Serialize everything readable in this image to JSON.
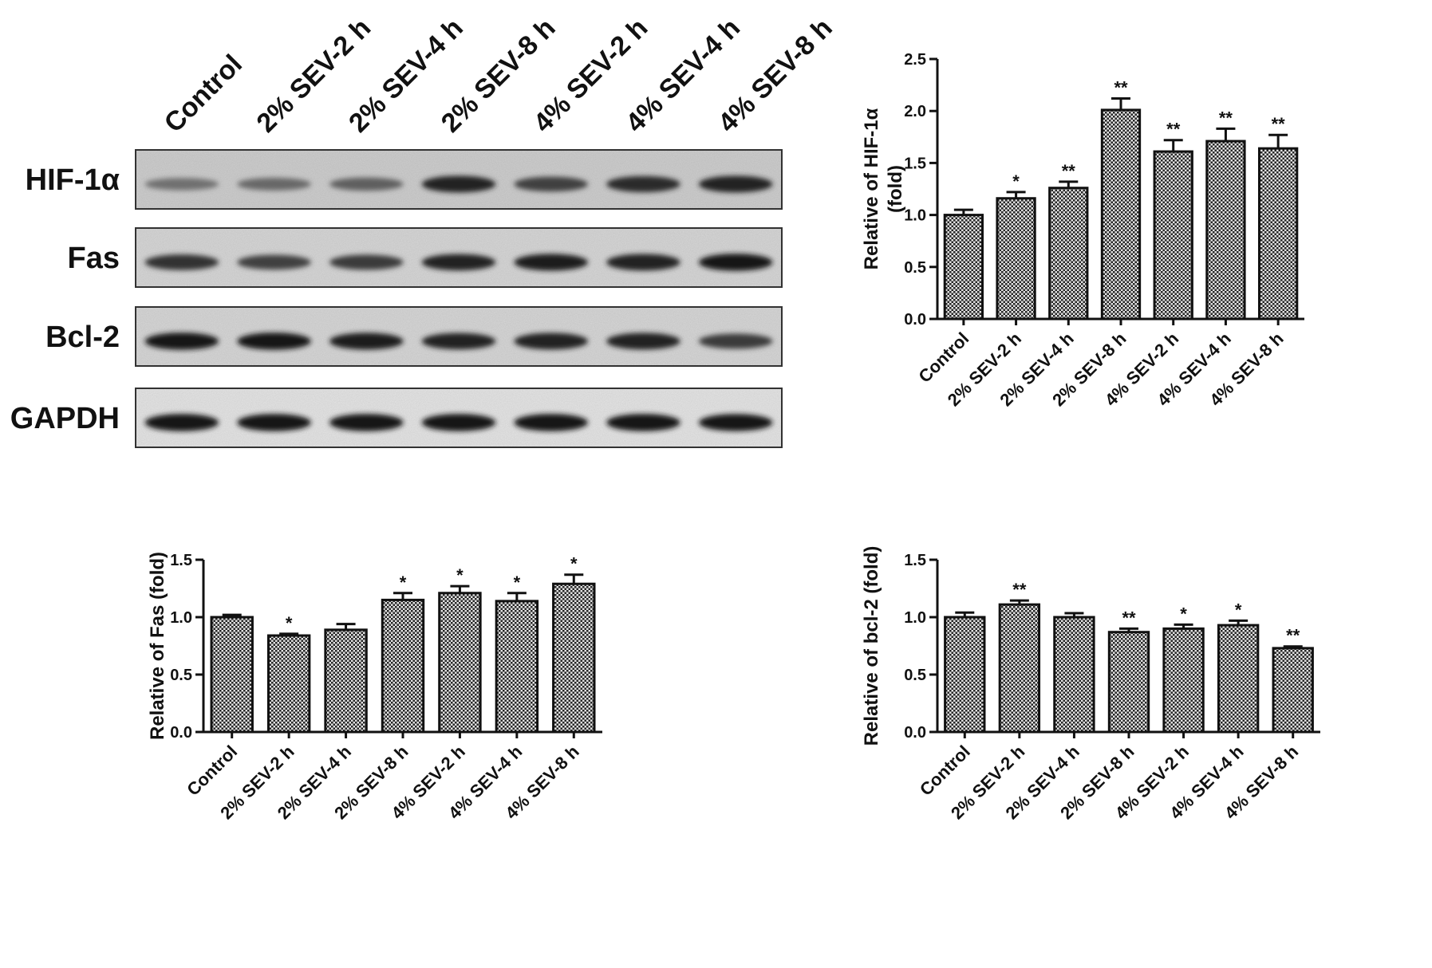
{
  "blot": {
    "lanes": [
      "Control",
      "2% SEV-2 h",
      "2% SEV-4 h",
      "2% SEV-8 h",
      "4% SEV-2 h",
      "4% SEV-4 h",
      "4% SEV-8 h"
    ],
    "rows": [
      {
        "label": "HIF-1α",
        "intensity": [
          0.45,
          0.5,
          0.55,
          0.9,
          0.72,
          0.85,
          0.9
        ]
      },
      {
        "label": "Fas",
        "intensity": [
          0.8,
          0.72,
          0.75,
          0.88,
          0.92,
          0.9,
          0.95
        ]
      },
      {
        "label": "Bcl-2",
        "intensity": [
          0.95,
          0.95,
          0.92,
          0.88,
          0.9,
          0.9,
          0.75
        ]
      },
      {
        "label": "GAPDH",
        "intensity": [
          0.97,
          0.97,
          0.97,
          0.97,
          0.97,
          0.97,
          0.95
        ]
      }
    ]
  },
  "chart_data": [
    {
      "type": "bar",
      "title": "",
      "ylabel": [
        "Relative of HIF-1α",
        "(fold)"
      ],
      "categories": [
        "Control",
        "2% SEV-2 h",
        "2% SEV-4 h",
        "2% SEV-8 h",
        "4% SEV-2 h",
        "4% SEV-4 h",
        "4% SEV-8 h"
      ],
      "values": [
        1.0,
        1.16,
        1.26,
        2.01,
        1.61,
        1.71,
        1.64
      ],
      "errors": [
        0.05,
        0.06,
        0.06,
        0.11,
        0.11,
        0.12,
        0.13
      ],
      "significance": [
        "",
        "*",
        "**",
        "**",
        "**",
        "**",
        "**"
      ],
      "ylim": [
        0,
        2.5
      ],
      "yticks": [
        "0.0",
        "0.5",
        "1.0",
        "1.5",
        "2.0",
        "2.5"
      ],
      "grid": false
    },
    {
      "type": "bar",
      "title": "",
      "ylabel": [
        "Relative of Fas (fold)"
      ],
      "categories": [
        "Control",
        "2% SEV-2 h",
        "2% SEV-4 h",
        "2% SEV-8 h",
        "4% SEV-2 h",
        "4% SEV-4 h",
        "4% SEV-8 h"
      ],
      "values": [
        1.0,
        0.84,
        0.89,
        1.15,
        1.21,
        1.14,
        1.29
      ],
      "errors": [
        0.02,
        0.015,
        0.05,
        0.06,
        0.06,
        0.07,
        0.08
      ],
      "significance": [
        "",
        "*",
        "",
        "*",
        "*",
        "*",
        "*"
      ],
      "ylim": [
        0,
        1.5
      ],
      "yticks": [
        "0.0",
        "0.5",
        "1.0",
        "1.5"
      ],
      "grid": false
    },
    {
      "type": "bar",
      "title": "",
      "ylabel": [
        "Relative of bcl-2 (fold)"
      ],
      "categories": [
        "Control",
        "2% SEV-2 h",
        "2% SEV-4 h",
        "2% SEV-8 h",
        "4% SEV-2 h",
        "4% SEV-4 h",
        "4% SEV-8 h"
      ],
      "values": [
        1.0,
        1.11,
        1.0,
        0.87,
        0.9,
        0.93,
        0.73
      ],
      "errors": [
        0.04,
        0.035,
        0.035,
        0.03,
        0.035,
        0.04,
        0.015
      ],
      "significance": [
        "",
        "**",
        "",
        "**",
        "*",
        "*",
        "**"
      ],
      "ylim": [
        0,
        1.5
      ],
      "yticks": [
        "0.0",
        "0.5",
        "1.0",
        "1.5"
      ],
      "grid": false
    }
  ]
}
